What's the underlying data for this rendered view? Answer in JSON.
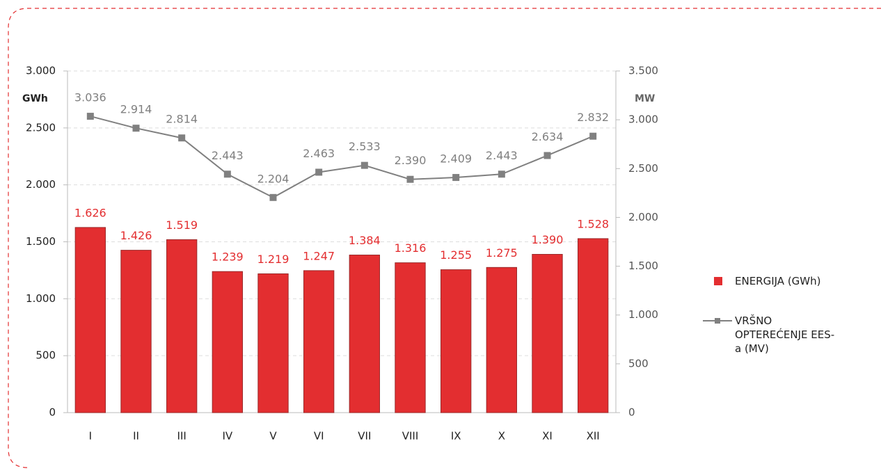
{
  "chart_data": {
    "type": "bar",
    "y_label": "GWh",
    "y2_label": "MW",
    "categories": [
      "I",
      "II",
      "III",
      "IV",
      "V",
      "VI",
      "VII",
      "VIII",
      "IX",
      "X",
      "XI",
      "XII"
    ],
    "series": [
      {
        "name": "ENERGIJA (GWh)",
        "type": "bar",
        "color": "#e32e30",
        "values": [
          1626,
          1426,
          1519,
          1239,
          1219,
          1247,
          1384,
          1316,
          1255,
          1275,
          1390,
          1528
        ],
        "value_labels": [
          "1.626",
          "1.426",
          "1.519",
          "1.239",
          "1.219",
          "1.247",
          "1.384",
          "1.316",
          "1.255",
          "1.275",
          "1.390",
          "1.528"
        ]
      },
      {
        "name": "VRŠNO OPTEREĆENJE EES-a (MV)",
        "type": "line",
        "axis": "y2",
        "color": "#808080",
        "values": [
          3036,
          2914,
          2814,
          2443,
          2204,
          2463,
          2533,
          2390,
          2409,
          2443,
          2634,
          2832
        ],
        "value_labels": [
          "3.036",
          "2.914",
          "2.814",
          "2.443",
          "2.204",
          "2.463",
          "2.533",
          "2.390",
          "2.409",
          "2.443",
          "2.634",
          "2.832"
        ]
      }
    ],
    "ylim": [
      0,
      3000
    ],
    "yticks": [
      0,
      500,
      {
        "value": 1000,
        "label": "1.000"
      },
      {
        "value": 1500,
        "label": "1.500"
      },
      {
        "value": 2000,
        "label": "2.000"
      },
      {
        "value": 2500,
        "label": "2.500"
      },
      {
        "value": 3000,
        "label": "3.000"
      }
    ],
    "y2lim": [
      0,
      3500
    ],
    "y2ticks": [
      0,
      500,
      {
        "value": 1000,
        "label": "1.000"
      },
      {
        "value": 1500,
        "label": "1.500"
      },
      {
        "value": 2000,
        "label": "2.000"
      },
      {
        "value": 2500,
        "label": "2.500"
      },
      {
        "value": 3000,
        "label": "3.000"
      },
      {
        "value": 3500,
        "label": "3.500"
      }
    ],
    "grid": true
  }
}
